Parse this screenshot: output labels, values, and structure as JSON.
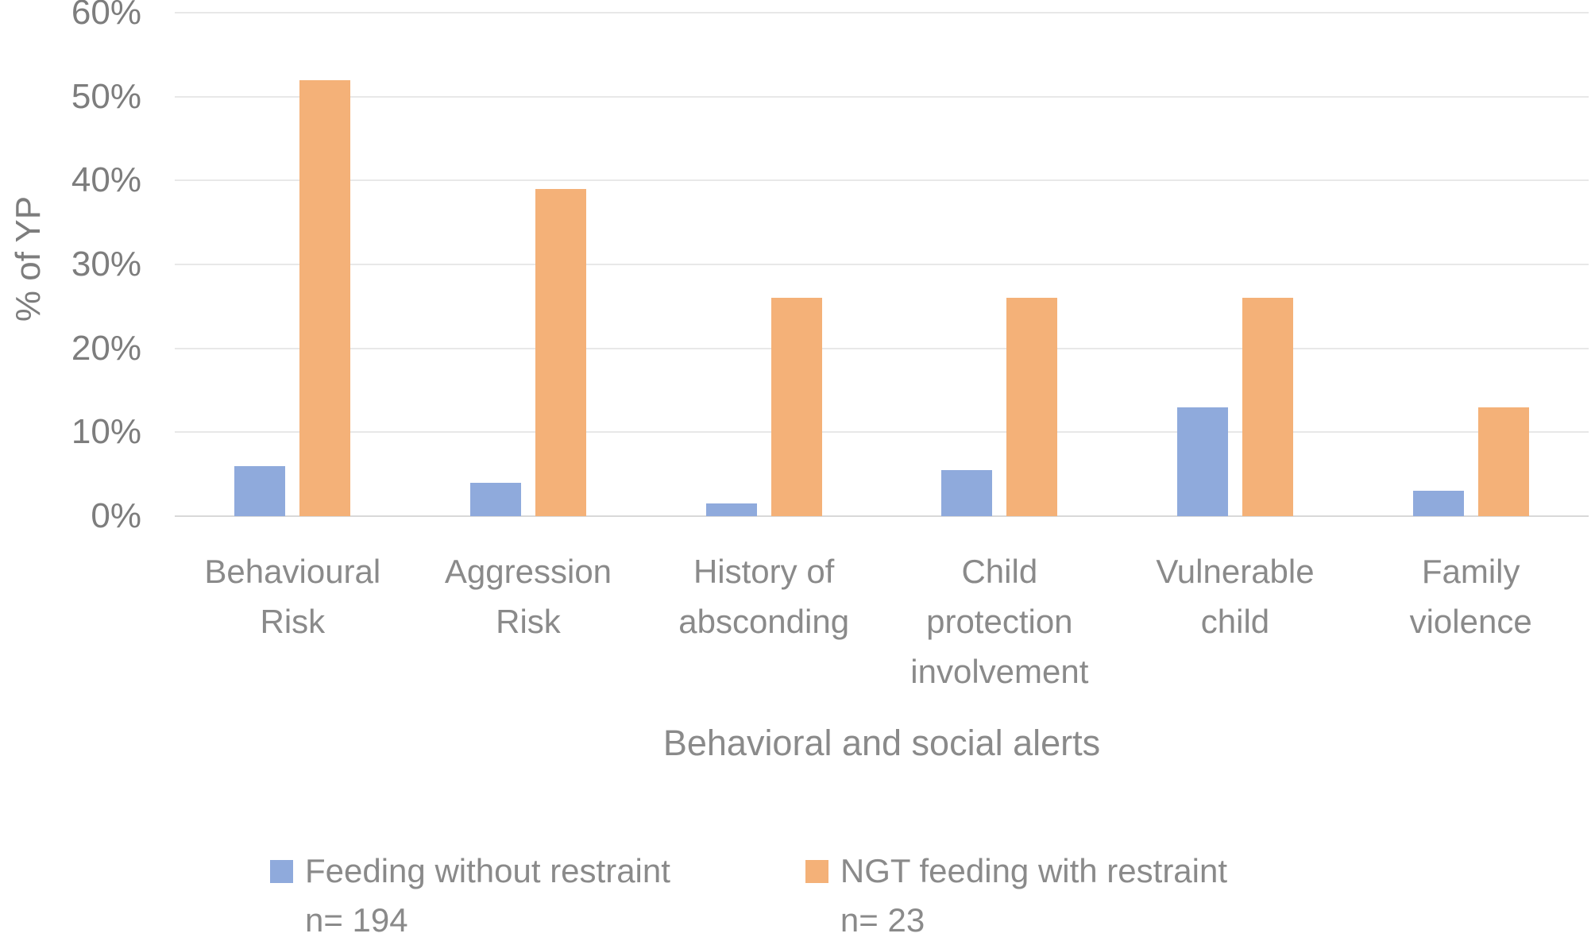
{
  "chart_data": {
    "type": "bar",
    "title": "",
    "xlabel": "Behavioral and social alerts",
    "ylabel": "% of YP",
    "categories": [
      "Behavioural Risk",
      "Aggression Risk",
      "History of absconding",
      "Child protection involvement",
      "Vulnerable child",
      "Family violence"
    ],
    "series": [
      {
        "name": "Feeding without restraint n= 194",
        "legend_lines": [
          "Feeding without restraint",
          "n= 194"
        ],
        "color": "#8FAADC",
        "values": [
          6,
          4,
          1.5,
          5.5,
          13,
          3
        ]
      },
      {
        "name": "NGT feeding with restraint n= 23",
        "legend_lines": [
          "NGT feeding with restraint",
          "n= 23"
        ],
        "color": "#F4B178",
        "values": [
          52,
          39,
          26,
          26,
          26,
          13
        ]
      }
    ],
    "values_unit": "percent",
    "ylim": [
      0,
      60
    ],
    "ytick_step": 10,
    "ytick_labels": [
      "0%",
      "10%",
      "20%",
      "30%",
      "40%",
      "50%",
      "60%"
    ],
    "grid": true,
    "gridline_color": "#E8E8E8",
    "axis_line_color": "#D9D9D9",
    "text_color": "#8A8A8A",
    "legend_position": "bottom"
  }
}
